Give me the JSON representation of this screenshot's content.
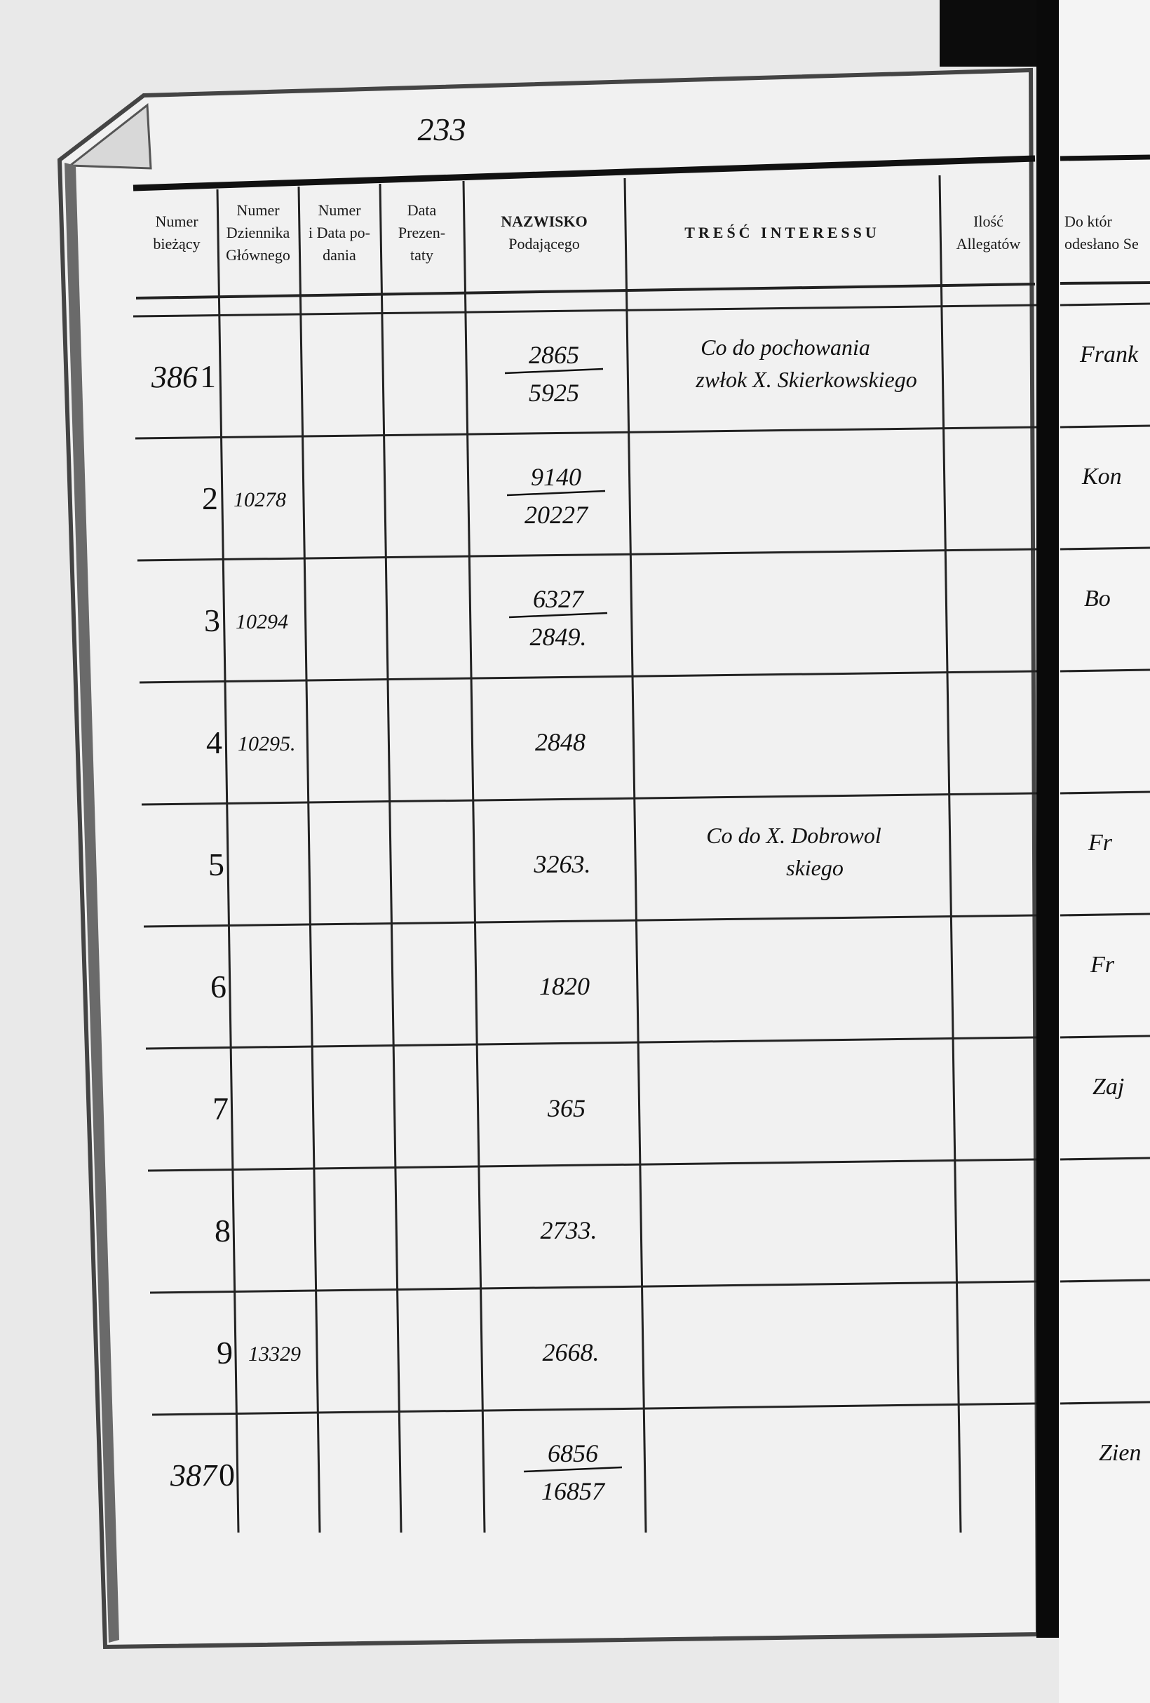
{
  "page_number": "233",
  "header": {
    "columns": [
      [
        "Numer",
        "bieżący"
      ],
      [
        "Numer",
        "Dziennika",
        "Głównego"
      ],
      [
        "Numer",
        "i Data po-",
        "dania"
      ],
      [
        "Data",
        "Prezen-",
        "taty"
      ],
      [
        "NAZWISKO",
        "Podającego"
      ],
      [
        "TREŚĆ  INTERESSU"
      ],
      [
        "Ilość",
        "Allegatów"
      ],
      [
        "Do któr",
        "odesłano Se"
      ]
    ]
  },
  "rows": [
    {
      "prefix": "386",
      "number": "1",
      "name": [
        "2865",
        "5925"
      ],
      "content": [
        "Co do pochowania",
        "zwłok X. Skierkowskiego"
      ],
      "sent_to": "Frank"
    },
    {
      "number": "2",
      "journal": "10278",
      "name": [
        "9140",
        "20227"
      ],
      "sent_to": "Kon"
    },
    {
      "number": "3",
      "journal": "10294",
      "name": [
        "6327",
        "2849."
      ],
      "sent_to": "Bo"
    },
    {
      "number": "4",
      "journal": "10295.",
      "name": [
        "2848"
      ]
    },
    {
      "number": "5",
      "name": [
        "3263."
      ],
      "content": [
        "Co do X. Dobrowol",
        "skiego"
      ],
      "sent_to": "Fr"
    },
    {
      "number": "6",
      "name": [
        "1820"
      ],
      "sent_to": "Fr"
    },
    {
      "number": "7",
      "name": [
        "365"
      ],
      "sent_to": "Zaj"
    },
    {
      "number": "8",
      "name": [
        "2733."
      ]
    },
    {
      "number": "9",
      "journal": "13329",
      "name": [
        "2668."
      ]
    },
    {
      "prefix": "387",
      "number": "0",
      "name": [
        "6856",
        "16857"
      ],
      "sent_to": "Zien"
    }
  ]
}
